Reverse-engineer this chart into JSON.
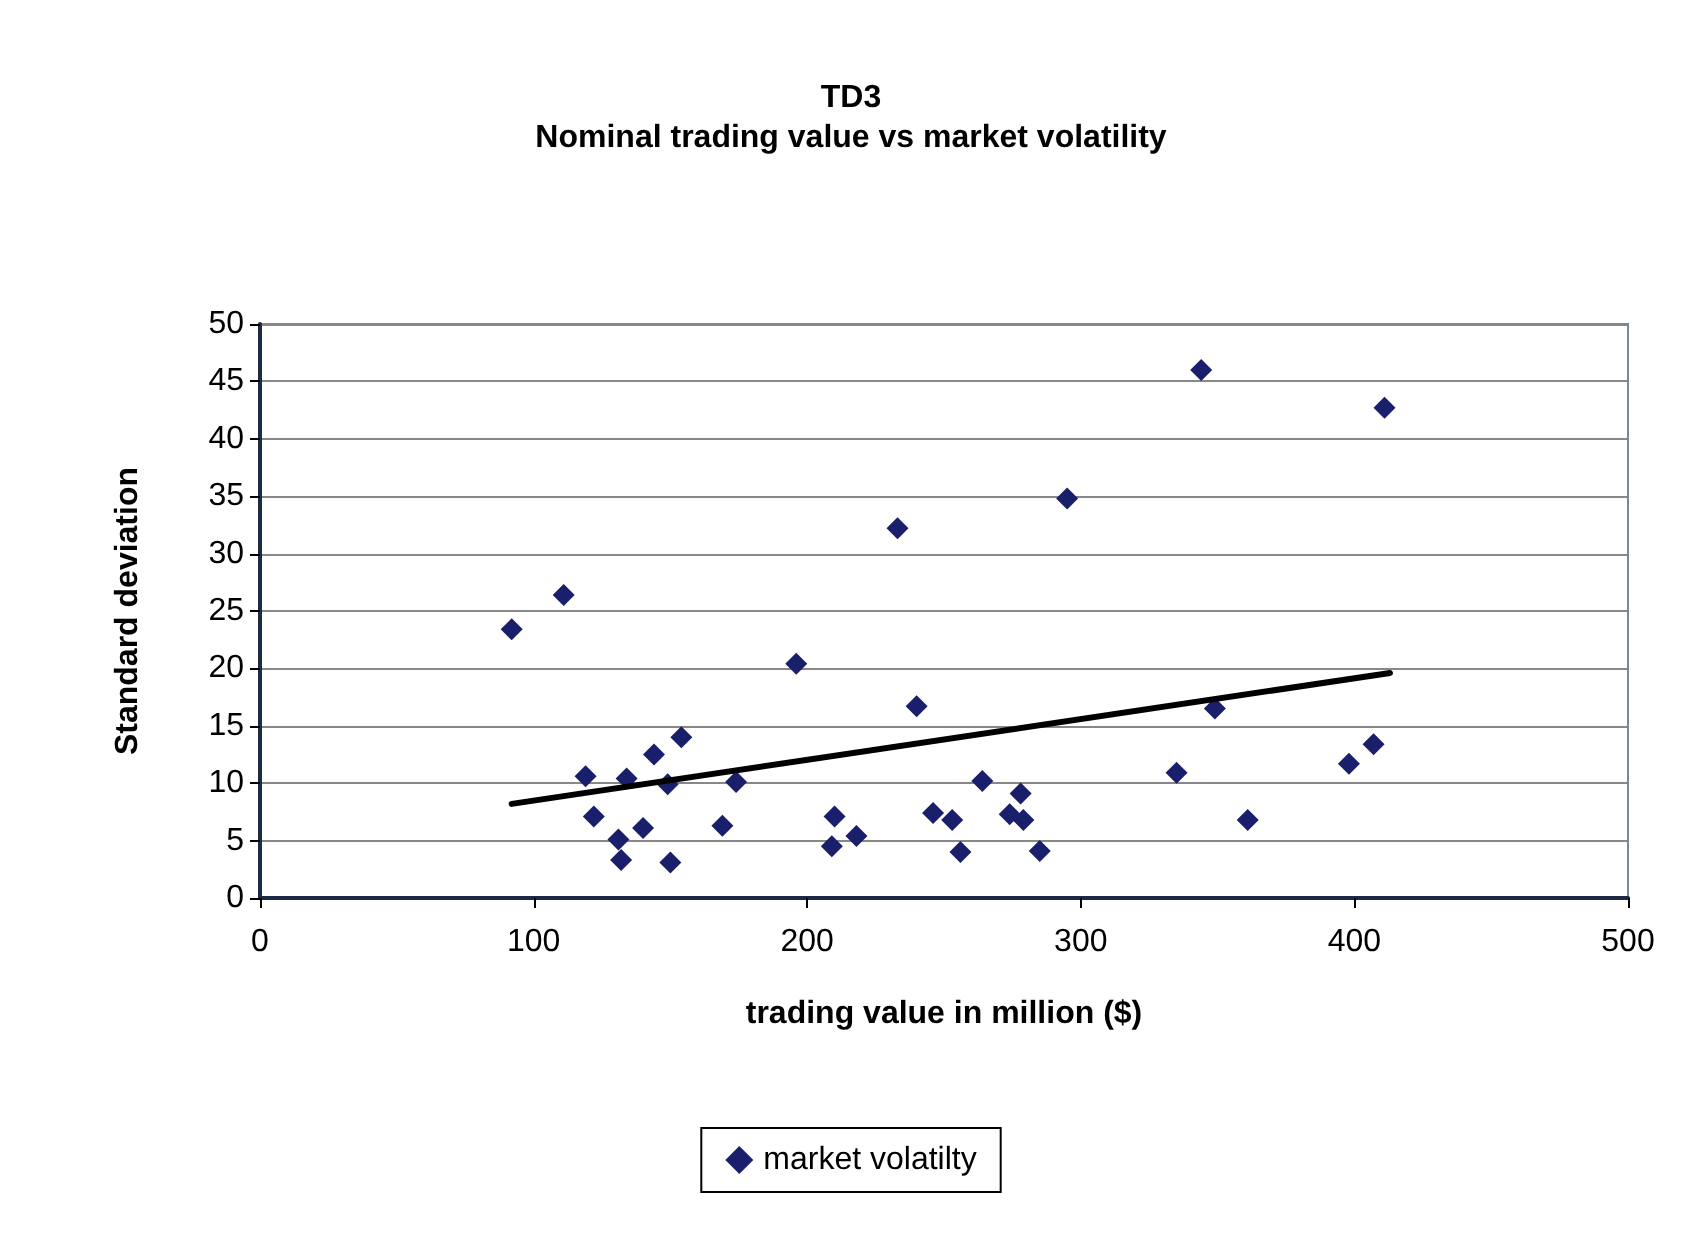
{
  "chart_data": {
    "type": "scatter",
    "title": "TD3",
    "subtitle": "Nominal trading value vs market volatility",
    "xlabel": "trading value in million ($)",
    "ylabel": "Standard deviation",
    "xlim": [
      0,
      500
    ],
    "xticks": [
      0,
      100,
      200,
      300,
      400,
      500
    ],
    "ylim": [
      0,
      50
    ],
    "yticks": [
      0,
      5,
      10,
      15,
      20,
      25,
      30,
      35,
      40,
      45,
      50
    ],
    "grid": "y",
    "legend": "bottom",
    "series": [
      {
        "name": "market volatilty",
        "marker": "diamond",
        "color": "#1a1f6b",
        "x": [
          92,
          111,
          196,
          233,
          295,
          344,
          411,
          119,
          122,
          131,
          132,
          134,
          140,
          144,
          149,
          150,
          154,
          169,
          174,
          209,
          210,
          218,
          240,
          246,
          253,
          256,
          264,
          274,
          278,
          279,
          285,
          335,
          349,
          361,
          398,
          407
        ],
        "values": [
          23.4,
          26.4,
          20.4,
          32.2,
          34.8,
          46.0,
          42.7,
          10.6,
          7.1,
          5.1,
          3.3,
          10.4,
          6.1,
          12.5,
          9.9,
          3.1,
          14.0,
          6.3,
          10.1,
          4.5,
          7.1,
          5.4,
          16.7,
          7.4,
          6.8,
          4.0,
          10.2,
          7.3,
          9.1,
          6.8,
          4.1,
          10.9,
          16.5,
          6.8,
          11.7,
          13.4
        ]
      },
      {
        "type": "line",
        "marker": "none",
        "line_style": "solid",
        "color": "#000000",
        "x": [
          92,
          413
        ],
        "values": [
          8.2,
          19.6
        ]
      }
    ]
  }
}
